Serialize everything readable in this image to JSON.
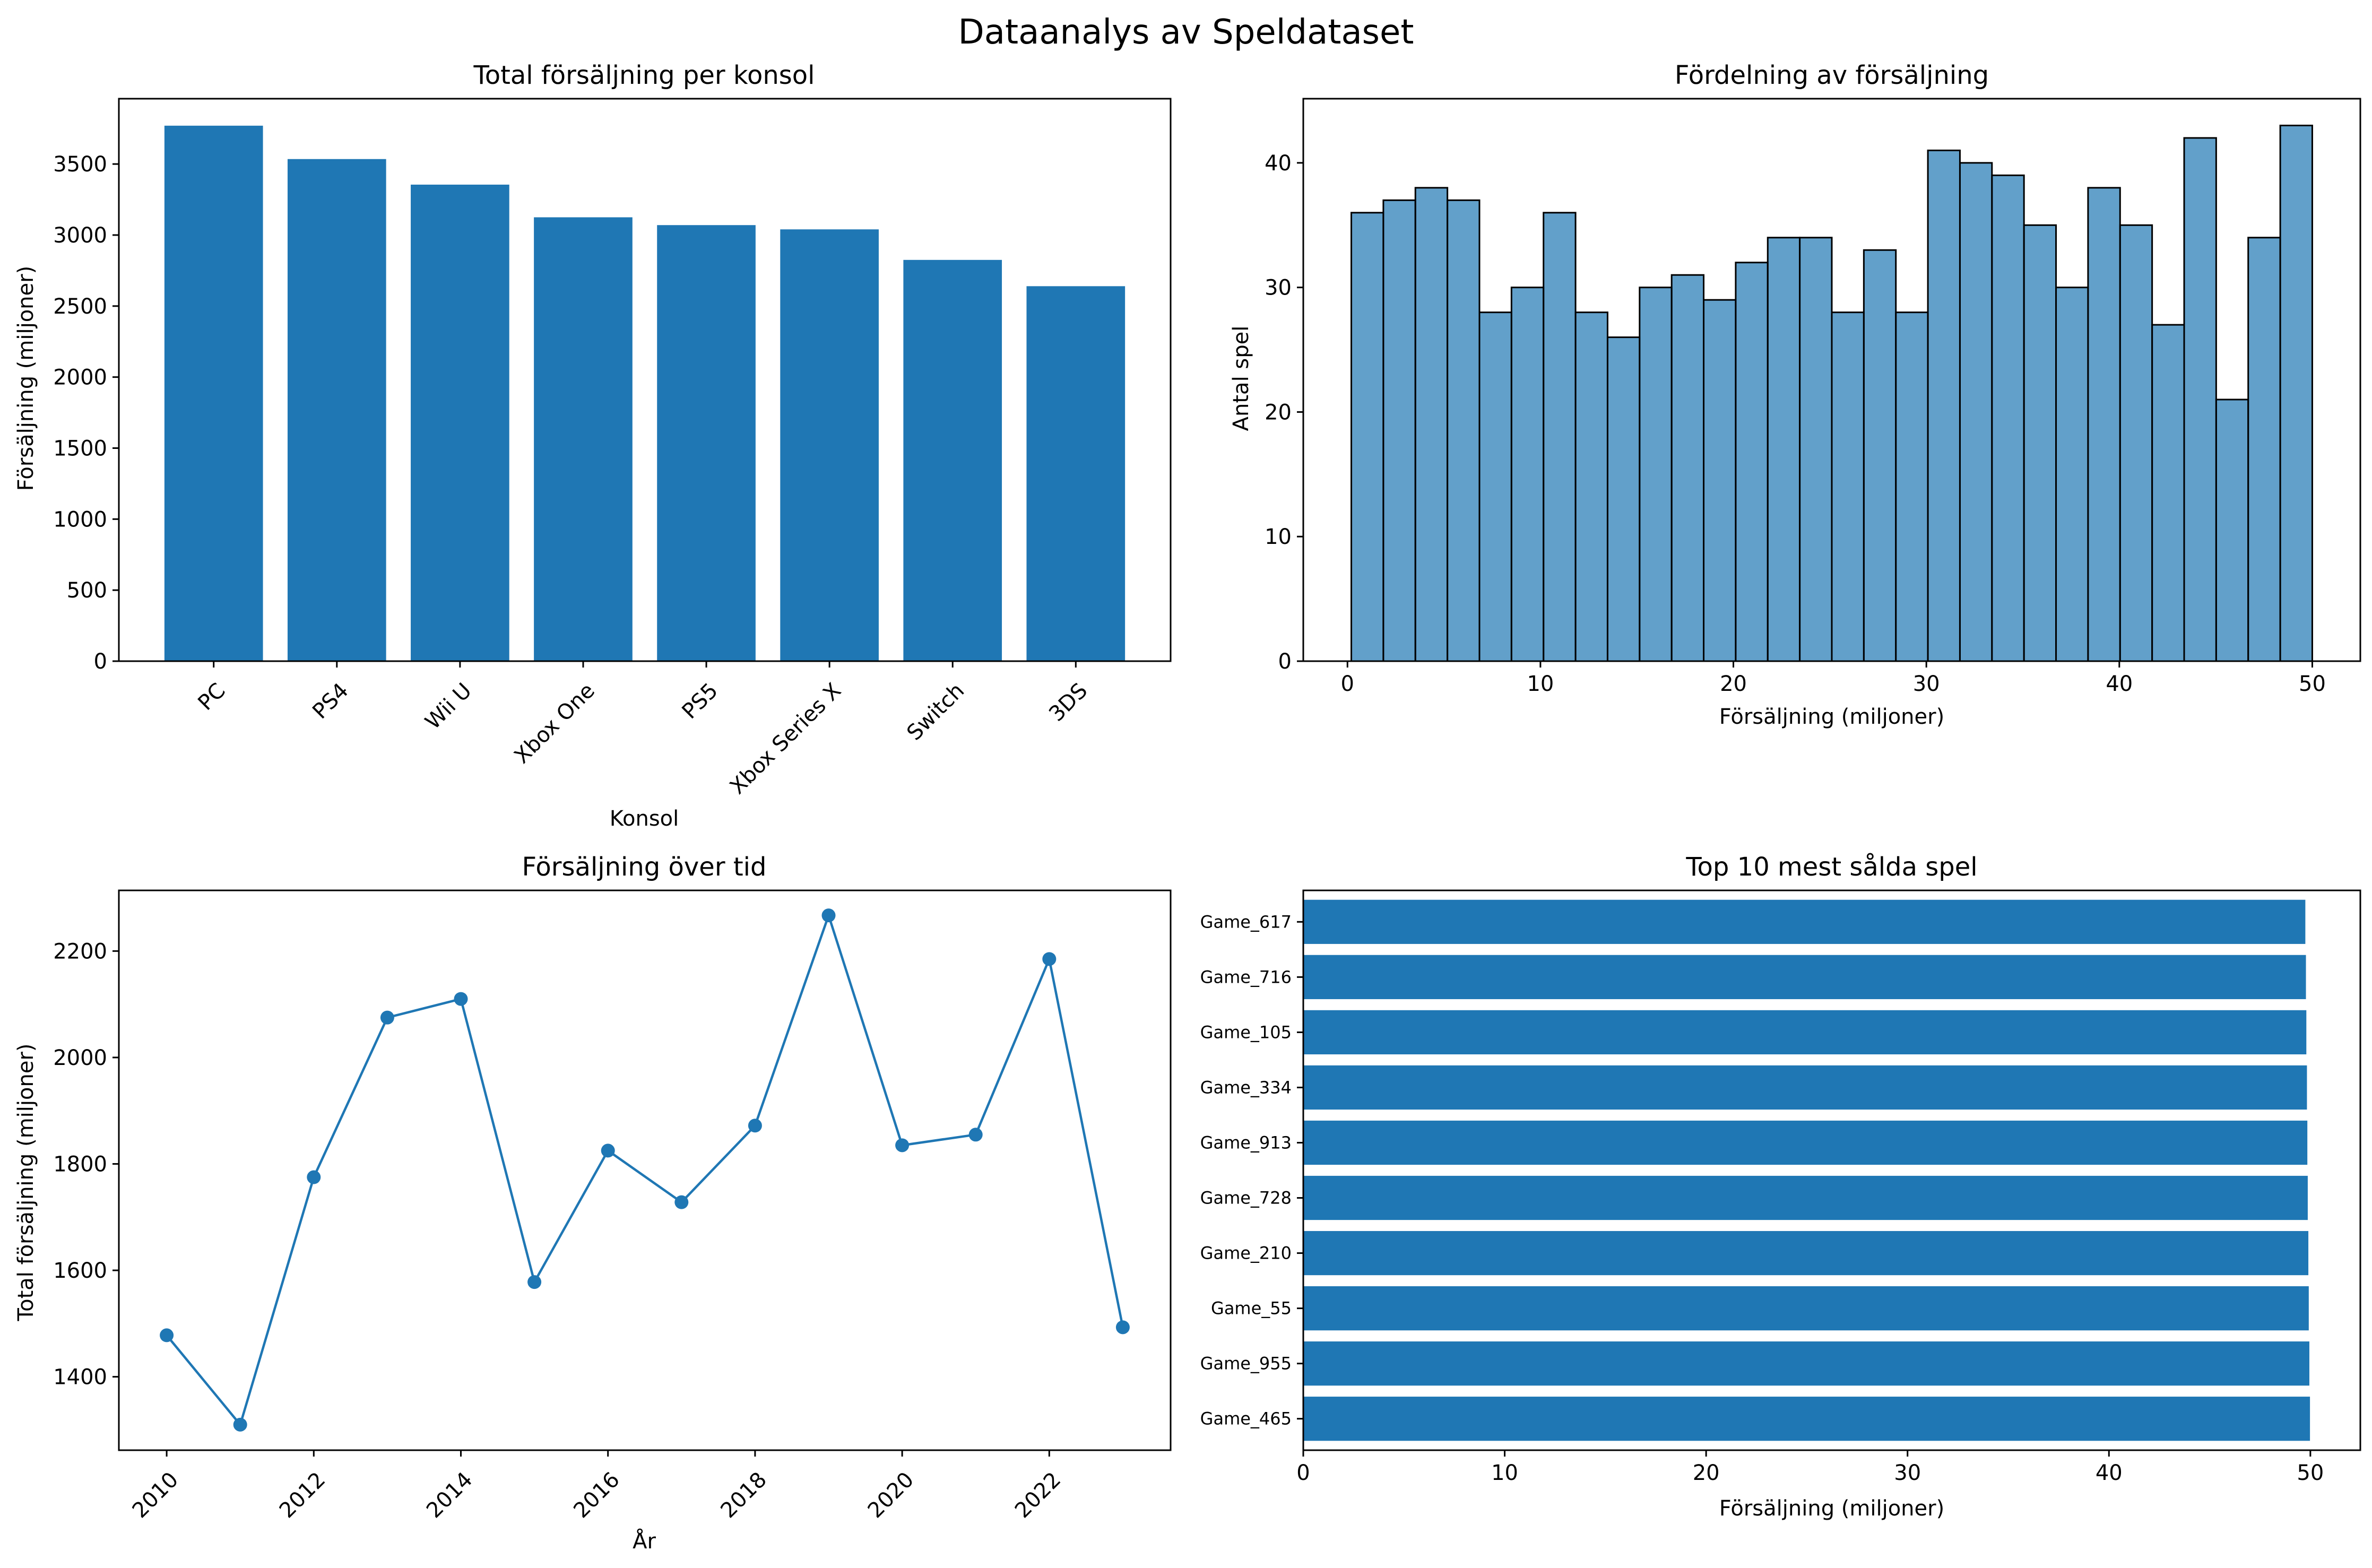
{
  "figure": {
    "title": "Dataanalys av Speldataset"
  },
  "colors": {
    "bar": "#1f77b4",
    "hist_fill": "#1f77b4",
    "hist_alpha": 0.7,
    "hist_edge": "#000000",
    "line": "#1f77b4"
  },
  "chart_data": [
    {
      "id": "console",
      "type": "bar",
      "title": "Total försäljning per konsol",
      "xlabel": "Konsol",
      "ylabel": "Försäljning (miljoner)",
      "categories": [
        "PC",
        "PS4",
        "Wii U",
        "Xbox One",
        "PS5",
        "Xbox Series X",
        "Switch",
        "3DS"
      ],
      "values": [
        3770,
        3535,
        3355,
        3125,
        3070,
        3040,
        2825,
        2640
      ],
      "ylim": [
        0,
        3960
      ],
      "yticks": [
        0,
        500,
        1000,
        1500,
        2000,
        2500,
        3000,
        3500
      ],
      "grid": false
    },
    {
      "id": "histogram",
      "type": "bar",
      "subtype": "histogram",
      "title": "Fördelning av försäljning",
      "xlabel": "Försäljning (miljoner)",
      "ylabel": "Antal spel",
      "bins": 30,
      "bin_range": [
        0.2,
        50
      ],
      "counts": [
        36,
        37,
        38,
        37,
        28,
        30,
        36,
        28,
        26,
        30,
        31,
        29,
        32,
        34,
        34,
        28,
        33,
        28,
        41,
        40,
        39,
        35,
        30,
        38,
        35,
        27,
        42,
        21,
        34,
        43
      ],
      "xlim": [
        -2.29,
        52.49
      ],
      "ylim": [
        0,
        45.15
      ],
      "xticks": [
        0,
        10,
        20,
        30,
        40,
        50
      ],
      "yticks": [
        0,
        10,
        20,
        30,
        40
      ],
      "grid": false
    },
    {
      "id": "timeline",
      "type": "line",
      "title": "Försäljning över tid",
      "xlabel": "År",
      "ylabel": "Total försäljning (miljoner)",
      "x": [
        2010,
        2011,
        2012,
        2013,
        2014,
        2015,
        2016,
        2017,
        2018,
        2019,
        2020,
        2021,
        2022,
        2023
      ],
      "y": [
        1478,
        1310,
        1775,
        2075,
        2110,
        1578,
        1825,
        1728,
        1872,
        2267,
        1835,
        1855,
        2185,
        1493
      ],
      "xlim": [
        2009.35,
        2023.65
      ],
      "ylim": [
        1262,
        2314
      ],
      "xticks": [
        2010,
        2012,
        2014,
        2016,
        2018,
        2020,
        2022
      ],
      "yticks": [
        1400,
        1600,
        1800,
        2000,
        2200
      ],
      "markers": true,
      "grid": false
    },
    {
      "id": "top10",
      "type": "bar",
      "orientation": "horizontal",
      "title": "Top 10 mest sålda spel",
      "xlabel": "Försäljning (miljoner)",
      "categories": [
        "Game_617",
        "Game_716",
        "Game_105",
        "Game_334",
        "Game_913",
        "Game_728",
        "Game_210",
        "Game_55",
        "Game_955",
        "Game_465"
      ],
      "values": [
        49.75,
        49.78,
        49.8,
        49.83,
        49.85,
        49.87,
        49.9,
        49.92,
        49.95,
        49.98
      ],
      "xlim": [
        0,
        52.48
      ],
      "xticks": [
        0,
        10,
        20,
        30,
        40,
        50
      ],
      "grid": false
    }
  ]
}
